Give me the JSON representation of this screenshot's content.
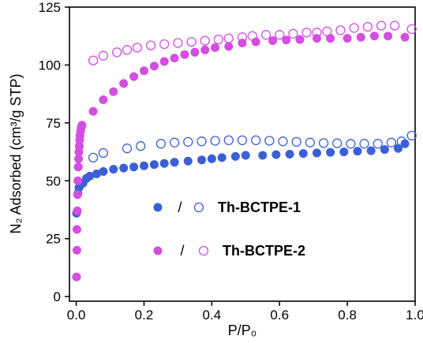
{
  "chart_data": {
    "type": "scatter",
    "xlabel": "P/P₀",
    "ylabel": "N₂ Adsorbed (cm³/g STP)",
    "xlim": [
      -0.02,
      1.0
    ],
    "ylim": [
      -2,
      125
    ],
    "xticks": [
      0.0,
      0.2,
      0.4,
      0.6,
      0.8,
      1.0
    ],
    "xtick_labels": [
      "0.0",
      "0.2",
      "0.4",
      "0.6",
      "0.8",
      "1.0"
    ],
    "yticks": [
      0,
      25,
      50,
      75,
      100,
      125
    ],
    "ytick_labels": [
      "0",
      "25",
      "50",
      "75",
      "100",
      "125"
    ],
    "grid": false,
    "legend_position": "center",
    "separator": "/",
    "series": [
      {
        "name": "Th-BCTPE-1",
        "branch": "adsorption",
        "color": "#3b5fd8",
        "marker": "filled-circle",
        "points": [
          [
            0.001,
            36
          ],
          [
            0.003,
            37
          ],
          [
            0.005,
            44.5
          ],
          [
            0.008,
            47
          ],
          [
            0.012,
            48
          ],
          [
            0.02,
            49
          ],
          [
            0.03,
            51
          ],
          [
            0.04,
            52
          ],
          [
            0.06,
            53
          ],
          [
            0.08,
            54
          ],
          [
            0.11,
            55
          ],
          [
            0.14,
            55.5
          ],
          [
            0.17,
            56
          ],
          [
            0.2,
            56.5
          ],
          [
            0.23,
            57
          ],
          [
            0.26,
            57.5
          ],
          [
            0.29,
            58
          ],
          [
            0.33,
            58.5
          ],
          [
            0.37,
            59
          ],
          [
            0.4,
            59.5
          ],
          [
            0.43,
            60
          ],
          [
            0.47,
            60.5
          ],
          [
            0.5,
            61
          ],
          [
            0.55,
            61
          ],
          [
            0.59,
            61.3
          ],
          [
            0.63,
            61.5
          ],
          [
            0.67,
            61.8
          ],
          [
            0.71,
            62
          ],
          [
            0.75,
            62.3
          ],
          [
            0.79,
            62.5
          ],
          [
            0.83,
            62.8
          ],
          [
            0.87,
            63
          ],
          [
            0.91,
            63.5
          ],
          [
            0.95,
            64
          ],
          [
            0.97,
            66
          ]
        ]
      },
      {
        "name": "Th-BCTPE-1",
        "branch": "desorption",
        "color": "#3b5fd8",
        "marker": "open-circle",
        "points": [
          [
            0.99,
            69.5
          ],
          [
            0.96,
            67
          ],
          [
            0.93,
            66.5
          ],
          [
            0.89,
            66
          ],
          [
            0.85,
            66
          ],
          [
            0.81,
            66
          ],
          [
            0.77,
            66.2
          ],
          [
            0.73,
            66.3
          ],
          [
            0.69,
            66.5
          ],
          [
            0.65,
            66.8
          ],
          [
            0.61,
            67
          ],
          [
            0.57,
            67.3
          ],
          [
            0.53,
            67.5
          ],
          [
            0.49,
            67.5
          ],
          [
            0.45,
            67.5
          ],
          [
            0.41,
            67.3
          ],
          [
            0.37,
            67
          ],
          [
            0.33,
            66.8
          ],
          [
            0.29,
            66.5
          ],
          [
            0.25,
            66
          ],
          [
            0.19,
            65
          ],
          [
            0.15,
            64
          ],
          [
            0.08,
            62
          ],
          [
            0.05,
            60
          ]
        ]
      },
      {
        "name": "Th-BCTPE-2",
        "branch": "adsorption",
        "color": "#d44ee0",
        "marker": "filled-circle",
        "points": [
          [
            0.001,
            8.5
          ],
          [
            0.002,
            20
          ],
          [
            0.002,
            29
          ],
          [
            0.003,
            37
          ],
          [
            0.004,
            44
          ],
          [
            0.005,
            50
          ],
          [
            0.006,
            56
          ],
          [
            0.007,
            59.5
          ],
          [
            0.008,
            62.5
          ],
          [
            0.009,
            65
          ],
          [
            0.01,
            67.5
          ],
          [
            0.011,
            69.5
          ],
          [
            0.013,
            71.5
          ],
          [
            0.015,
            73
          ],
          [
            0.017,
            74
          ],
          [
            0.05,
            80
          ],
          [
            0.08,
            85
          ],
          [
            0.11,
            88.5
          ],
          [
            0.14,
            92
          ],
          [
            0.17,
            95
          ],
          [
            0.2,
            97.5
          ],
          [
            0.23,
            99.5
          ],
          [
            0.26,
            101.5
          ],
          [
            0.29,
            103
          ],
          [
            0.32,
            104.5
          ],
          [
            0.35,
            105.5
          ],
          [
            0.38,
            106.5
          ],
          [
            0.41,
            107.5
          ],
          [
            0.45,
            108
          ],
          [
            0.49,
            109.5
          ],
          [
            0.53,
            110
          ],
          [
            0.58,
            110.5
          ],
          [
            0.62,
            110.8
          ],
          [
            0.66,
            111
          ],
          [
            0.71,
            111.5
          ],
          [
            0.75,
            111.5
          ],
          [
            0.8,
            111.5
          ],
          [
            0.84,
            112
          ],
          [
            0.88,
            112.5
          ],
          [
            0.92,
            112.5
          ],
          [
            0.97,
            112
          ]
        ]
      },
      {
        "name": "Th-BCTPE-2",
        "branch": "desorption",
        "color": "#d44ee0",
        "marker": "open-circle",
        "points": [
          [
            0.99,
            115.5
          ],
          [
            0.94,
            117
          ],
          [
            0.9,
            117
          ],
          [
            0.86,
            116.5
          ],
          [
            0.82,
            116
          ],
          [
            0.78,
            115
          ],
          [
            0.74,
            114.5
          ],
          [
            0.71,
            114
          ],
          [
            0.68,
            114
          ],
          [
            0.64,
            113.5
          ],
          [
            0.6,
            113
          ],
          [
            0.56,
            113
          ],
          [
            0.52,
            112.5
          ],
          [
            0.49,
            112
          ],
          [
            0.45,
            111.5
          ],
          [
            0.42,
            111
          ],
          [
            0.38,
            110.5
          ],
          [
            0.34,
            110
          ],
          [
            0.3,
            109.5
          ],
          [
            0.26,
            109
          ],
          [
            0.22,
            108.5
          ],
          [
            0.18,
            107.5
          ],
          [
            0.15,
            106.5
          ],
          [
            0.12,
            105.5
          ],
          [
            0.08,
            104
          ],
          [
            0.05,
            102
          ]
        ]
      }
    ]
  }
}
